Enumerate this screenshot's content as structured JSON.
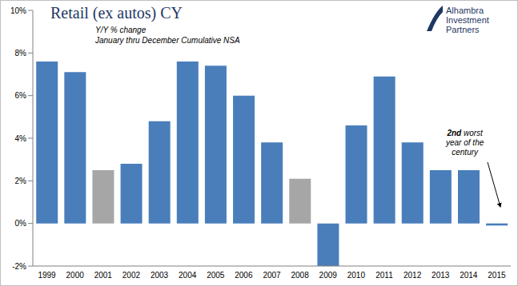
{
  "chart_data": {
    "type": "bar",
    "title": "Retail (ex autos) CY",
    "subtitle": [
      "Y/Y % change",
      "January thru December Cumulative NSA"
    ],
    "logo": "Alhambra Investment Partners",
    "annotation": [
      "2nd worst",
      "year of the",
      "century"
    ],
    "categories": [
      "1999",
      "2000",
      "2001",
      "2002",
      "2003",
      "2004",
      "2005",
      "2006",
      "2007",
      "2008",
      "2009",
      "2010",
      "2011",
      "2012",
      "2013",
      "2014",
      "2015"
    ],
    "values": [
      7.6,
      7.1,
      2.5,
      2.8,
      4.8,
      7.6,
      7.4,
      6.0,
      3.8,
      2.1,
      -2.0,
      4.6,
      6.9,
      3.8,
      2.5,
      2.5,
      -0.1
    ],
    "colors": [
      "#4a7ebb",
      "#4a7ebb",
      "#a6a6a6",
      "#4a7ebb",
      "#4a7ebb",
      "#4a7ebb",
      "#4a7ebb",
      "#4a7ebb",
      "#4a7ebb",
      "#a6a6a6",
      "#4a7ebb",
      "#4a7ebb",
      "#4a7ebb",
      "#4a7ebb",
      "#4a7ebb",
      "#4a7ebb",
      "#4a7ebb"
    ],
    "ylim": [
      -2,
      10
    ],
    "yticks": [
      {
        "value": -2,
        "label": "-2%"
      },
      {
        "value": 0,
        "label": "0%"
      },
      {
        "value": 2,
        "label": "2%"
      },
      {
        "value": 4,
        "label": "4%"
      },
      {
        "value": 6,
        "label": "6%"
      },
      {
        "value": 8,
        "label": "8%"
      },
      {
        "value": 10,
        "label": "10%"
      }
    ],
    "grid": false
  }
}
